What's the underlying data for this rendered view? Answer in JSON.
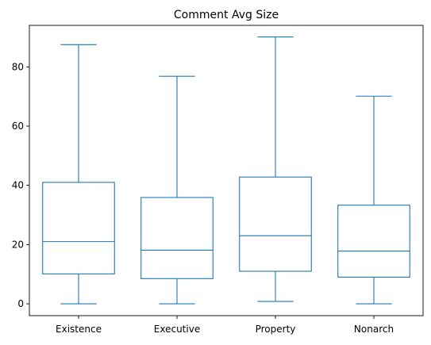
{
  "chart_data": {
    "type": "box",
    "title": "Comment Avg Size",
    "xlabel": "",
    "ylabel": "",
    "ylim": [
      -4,
      94
    ],
    "yticks": [
      0,
      20,
      40,
      60,
      80
    ],
    "grid": false,
    "color": "#1f77b4",
    "categories": [
      "Existence",
      "Executive",
      "Property",
      "Nonarch"
    ],
    "boxes": [
      {
        "name": "Existence",
        "whisker_low": 0.0,
        "q1": 10.1,
        "median": 21.0,
        "q3": 41.0,
        "whisker_high": 87.5
      },
      {
        "name": "Executive",
        "whisker_low": 0.0,
        "q1": 8.5,
        "median": 18.1,
        "q3": 35.9,
        "whisker_high": 76.8
      },
      {
        "name": "Property",
        "whisker_low": 0.8,
        "q1": 11.0,
        "median": 23.0,
        "q3": 42.8,
        "whisker_high": 90.1
      },
      {
        "name": "Nonarch",
        "whisker_low": 0.0,
        "q1": 9.0,
        "median": 17.8,
        "q3": 33.3,
        "whisker_high": 70.1
      }
    ]
  }
}
